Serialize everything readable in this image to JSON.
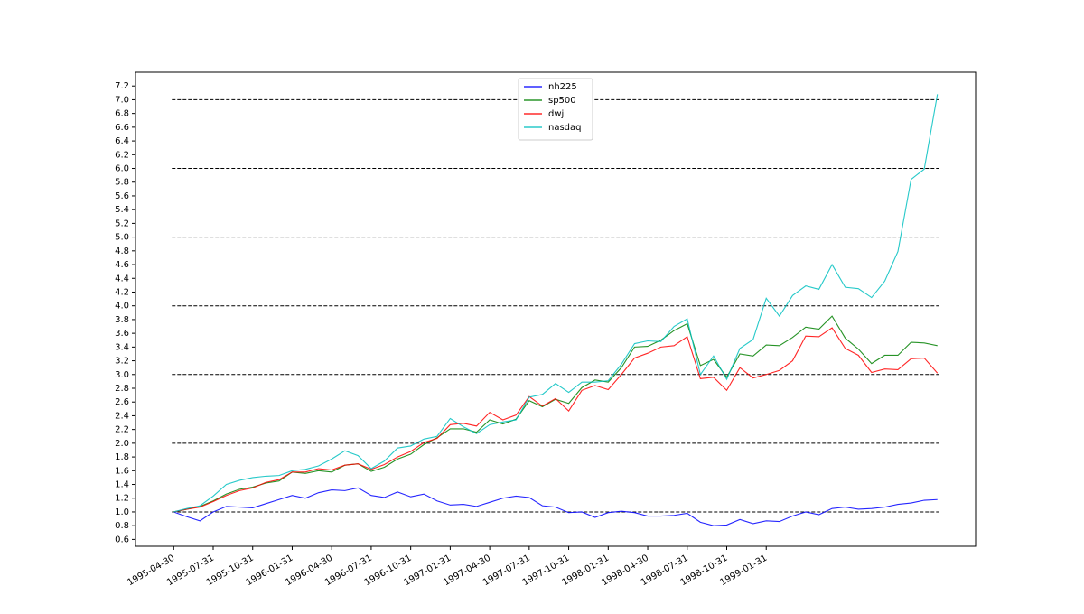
{
  "chart_data": {
    "type": "line",
    "categories": [
      "1995-04-30",
      null,
      null,
      "1995-07-31",
      null,
      null,
      "1995-10-31",
      null,
      null,
      "1996-01-31",
      null,
      null,
      "1996-04-30",
      null,
      null,
      "1996-07-31",
      null,
      null,
      "1996-10-31",
      null,
      null,
      "1997-01-31",
      null,
      null,
      "1997-04-30",
      null,
      null,
      "1997-07-31",
      null,
      null,
      "1997-10-31",
      null,
      null,
      "1998-01-31",
      null,
      null,
      "1998-04-30",
      null,
      null,
      "1998-07-31",
      null,
      null,
      "1998-10-31",
      null,
      null,
      "1999-01-31",
      null,
      null,
      null,
      null,
      null,
      null,
      null,
      null,
      null,
      null,
      null,
      null,
      null
    ],
    "series": [
      {
        "name": "nh225",
        "color": "#0000ff",
        "values": [
          1.0,
          0.93,
          0.87,
          1.0,
          1.08,
          1.07,
          1.06,
          1.12,
          1.18,
          1.24,
          1.2,
          1.28,
          1.32,
          1.31,
          1.35,
          1.24,
          1.21,
          1.29,
          1.22,
          1.26,
          1.16,
          1.1,
          1.11,
          1.08,
          1.14,
          1.2,
          1.23,
          1.21,
          1.09,
          1.07,
          0.99,
          1.0,
          0.92,
          0.99,
          1.01,
          0.99,
          0.94,
          0.94,
          0.95,
          0.98,
          0.85,
          0.8,
          0.81,
          0.89,
          0.83,
          0.87,
          0.86,
          0.94,
          1.0,
          0.96,
          1.05,
          1.07,
          1.04,
          1.05,
          1.07,
          1.11,
          1.13,
          1.17,
          1.18
        ]
      },
      {
        "name": "sp500",
        "color": "#008000",
        "values": [
          1.0,
          1.04,
          1.08,
          1.16,
          1.26,
          1.33,
          1.36,
          1.42,
          1.45,
          1.58,
          1.56,
          1.6,
          1.58,
          1.68,
          1.7,
          1.59,
          1.65,
          1.77,
          1.84,
          1.98,
          2.08,
          2.21,
          2.21,
          2.16,
          2.34,
          2.28,
          2.35,
          2.62,
          2.53,
          2.64,
          2.58,
          2.81,
          2.92,
          2.89,
          3.1,
          3.4,
          3.41,
          3.5,
          3.64,
          3.74,
          3.13,
          3.22,
          2.96,
          3.3,
          3.27,
          3.43,
          3.42,
          3.54,
          3.69,
          3.66,
          3.85,
          3.53,
          3.37,
          3.16,
          3.28,
          3.28,
          3.47,
          3.46,
          3.42
        ]
      },
      {
        "name": "dwj",
        "color": "#ff0000",
        "values": [
          1.0,
          1.04,
          1.07,
          1.15,
          1.24,
          1.31,
          1.35,
          1.43,
          1.47,
          1.58,
          1.58,
          1.63,
          1.61,
          1.68,
          1.7,
          1.62,
          1.69,
          1.8,
          1.88,
          2.01,
          2.07,
          2.27,
          2.29,
          2.25,
          2.45,
          2.34,
          2.41,
          2.68,
          2.54,
          2.65,
          2.47,
          2.77,
          2.84,
          2.78,
          3.0,
          3.24,
          3.31,
          3.4,
          3.42,
          3.55,
          2.94,
          2.96,
          2.77,
          3.1,
          2.95,
          3.0,
          3.06,
          3.2,
          3.56,
          3.55,
          3.68,
          3.38,
          3.28,
          3.03,
          3.08,
          3.07,
          3.23,
          3.24,
          3.02
        ]
      },
      {
        "name": "nasdaq",
        "color": "#00bfbf",
        "values": [
          1.0,
          1.05,
          1.09,
          1.23,
          1.4,
          1.46,
          1.5,
          1.52,
          1.53,
          1.6,
          1.62,
          1.67,
          1.77,
          1.89,
          1.82,
          1.63,
          1.74,
          1.93,
          1.96,
          2.06,
          2.1,
          2.36,
          2.24,
          2.14,
          2.27,
          2.31,
          2.34,
          2.67,
          2.71,
          2.87,
          2.74,
          2.89,
          2.89,
          2.91,
          3.15,
          3.45,
          3.49,
          3.48,
          3.7,
          3.81,
          3.0,
          3.27,
          2.93,
          3.38,
          3.51,
          4.11,
          3.85,
          4.15,
          4.29,
          4.24,
          4.6,
          4.27,
          4.25,
          4.12,
          4.36,
          4.79,
          5.84,
          5.99,
          7.08
        ]
      }
    ],
    "ylim": [
      0.5,
      7.4
    ],
    "yticks": [
      {
        "value": 0.6,
        "label": "0.6"
      },
      {
        "value": 0.8,
        "label": "0.8"
      },
      {
        "value": 1.0,
        "label": "1.0"
      },
      {
        "value": 1.2,
        "label": "1.2"
      },
      {
        "value": 1.4,
        "label": "1.4"
      },
      {
        "value": 1.6,
        "label": "1.6"
      },
      {
        "value": 1.8,
        "label": "1.8"
      },
      {
        "value": 2.0,
        "label": "2.0"
      },
      {
        "value": 2.2,
        "label": "2.2"
      },
      {
        "value": 2.4,
        "label": "2.4"
      },
      {
        "value": 2.6,
        "label": "2.6"
      },
      {
        "value": 2.8,
        "label": "2.8"
      },
      {
        "value": 3.0,
        "label": "3.0"
      },
      {
        "value": 3.2,
        "label": "3.2"
      },
      {
        "value": 3.4,
        "label": "3.4"
      },
      {
        "value": 3.6,
        "label": "3.6"
      },
      {
        "value": 3.8,
        "label": "3.8"
      },
      {
        "value": 4.0,
        "label": "4.0"
      },
      {
        "value": 4.2,
        "label": "4.2"
      },
      {
        "value": 4.4,
        "label": "4.4"
      },
      {
        "value": 4.6,
        "label": "4.6"
      },
      {
        "value": 4.8,
        "label": "4.8"
      },
      {
        "value": 5.0,
        "label": "5.0"
      },
      {
        "value": 5.2,
        "label": "5.2"
      },
      {
        "value": 5.4,
        "label": "5.4"
      },
      {
        "value": 5.6,
        "label": "5.6"
      },
      {
        "value": 5.8,
        "label": "5.8"
      },
      {
        "value": 6.0,
        "label": "6.0"
      },
      {
        "value": 6.2,
        "label": "6.2"
      },
      {
        "value": 6.4,
        "label": "6.4"
      },
      {
        "value": 6.6,
        "label": "6.6"
      },
      {
        "value": 6.8,
        "label": "6.8"
      },
      {
        "value": 7.0,
        "label": "7.0"
      },
      {
        "value": 7.2,
        "label": "7.2"
      }
    ],
    "hlines": [
      1,
      2,
      3,
      4,
      5,
      6,
      7
    ],
    "hline_color": "#000000",
    "legend": "upper center"
  }
}
